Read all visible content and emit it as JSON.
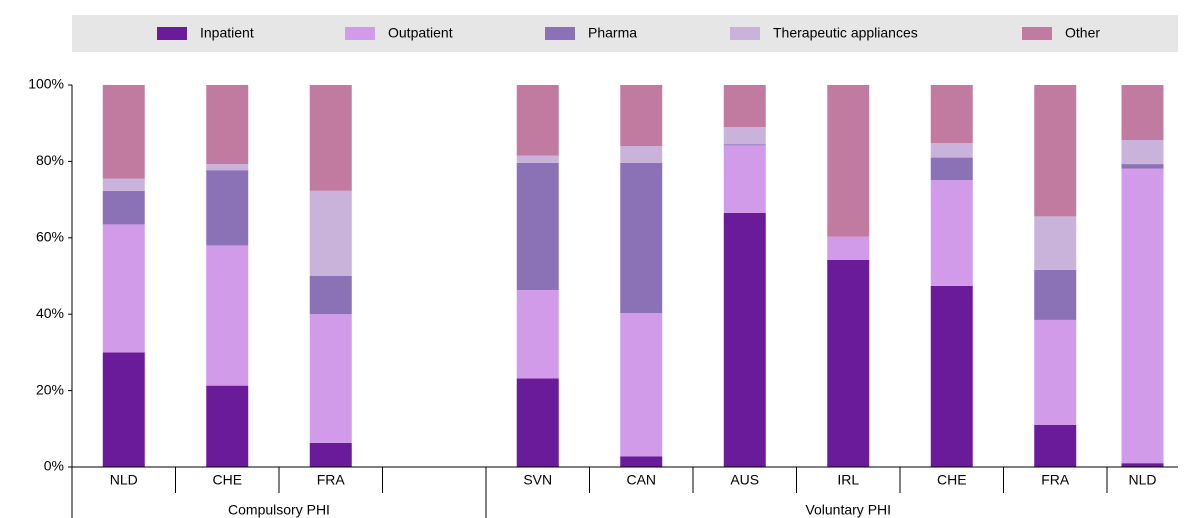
{
  "chart_data": {
    "type": "stacked_bar",
    "categories": [
      "NLD",
      "CHE",
      "FRA",
      null,
      "SVN",
      "CAN",
      "AUS",
      "IRL",
      "CHE",
      "FRA",
      "NLD"
    ],
    "groups": [
      {
        "label": "Compulsory PHI",
        "count": 4
      },
      {
        "label": "Voluntary PHI",
        "count": 7
      }
    ],
    "series": [
      {
        "name": "Inpatient",
        "color": "#6a1b9a",
        "values": [
          30,
          21.3,
          6.3,
          null,
          23.2,
          2.8,
          66.5,
          54.2,
          47.4,
          11,
          1
        ]
      },
      {
        "name": "Outpatient",
        "color": "#d19bea",
        "values": [
          33.5,
          36.7,
          33.7,
          null,
          23.1,
          37.5,
          17.7,
          6.1,
          27.7,
          27.5,
          77.1
        ]
      },
      {
        "name": "Pharma",
        "color": "#8b72b6",
        "values": [
          8.8,
          19.7,
          10,
          null,
          33.3,
          39.3,
          0.3,
          0,
          5.9,
          13.1,
          1.2
        ]
      },
      {
        "name": "Therapeutic appliances",
        "color": "#c9b3da",
        "values": [
          3.2,
          1.6,
          22.3,
          null,
          1.9,
          4.4,
          4.5,
          0,
          3.8,
          14,
          6.3
        ]
      },
      {
        "name": "Other",
        "color": "#c27ba0",
        "values": [
          24.5,
          20.7,
          27.7,
          null,
          18.5,
          16,
          11,
          39.7,
          15.2,
          34.4,
          14.4
        ]
      }
    ],
    "ylim": [
      0,
      100
    ],
    "yticks": [
      {
        "value": 0,
        "label": "0%"
      },
      {
        "value": 20,
        "label": "20%"
      },
      {
        "value": 40,
        "label": "40%"
      },
      {
        "value": 60,
        "label": "60%"
      },
      {
        "value": 80,
        "label": "80%"
      },
      {
        "value": 100,
        "label": "100%"
      }
    ],
    "legend": "top"
  }
}
